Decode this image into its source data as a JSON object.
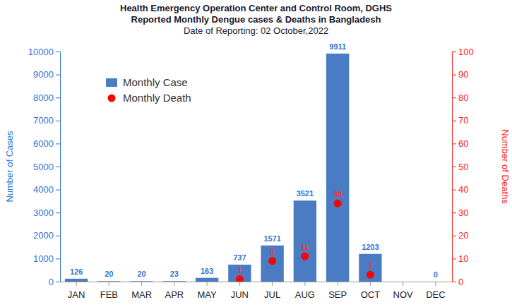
{
  "chart_data": {
    "type": "bar",
    "title": [
      "Health Emergency Operation Center and Control Room, DGHS",
      "Reported Monthly Dengue cases & Deaths in Bangladesh"
    ],
    "subtitle": "Date of Reporting: 02 October,2022",
    "y_label": "Number of Cases",
    "y2_label": "Number of Deaths",
    "categories": [
      "JAN",
      "FEB",
      "MAR",
      "APR",
      "MAY",
      "JUN",
      "JUL",
      "AUG",
      "SEP",
      "OCT",
      "NOV",
      "DEC"
    ],
    "series": [
      {
        "name": "Monthly Case",
        "type": "bar",
        "color": "#4a7cc4",
        "values": [
          126,
          20,
          20,
          23,
          163,
          737,
          1571,
          3521,
          9911,
          1203,
          null,
          0
        ]
      },
      {
        "name": "Monthly Death",
        "type": "scatter",
        "marker": "circle",
        "color": "#ff0000",
        "axis": "y2",
        "values": [
          null,
          null,
          null,
          null,
          null,
          1,
          9,
          11,
          34,
          3,
          null,
          null
        ]
      }
    ],
    "ylim": [
      0,
      10000
    ],
    "yticks": [
      0,
      1000,
      2000,
      3000,
      4000,
      5000,
      6000,
      7000,
      8000,
      9000,
      10000
    ],
    "y2lim": [
      0,
      100
    ],
    "y2ticks": [
      0,
      10,
      20,
      30,
      40,
      50,
      60,
      70,
      80,
      90,
      100
    ],
    "grid": false,
    "legend": "upper left",
    "data_labels": true
  }
}
